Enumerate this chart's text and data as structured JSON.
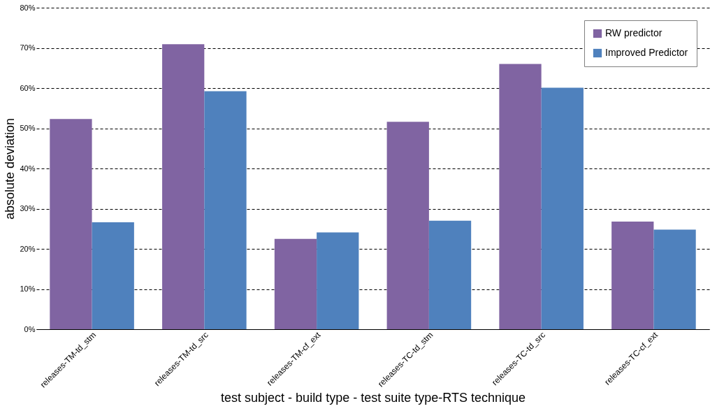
{
  "chart_data": {
    "type": "bar",
    "xlabel": "test subject - build type - test suite type-RTS technique",
    "ylabel": "absolute deviation",
    "categories": [
      "releases-TM-td_stm",
      "releases-TM-td_src",
      "releases-TM-cf_ext",
      "releases-TC-td_stm",
      "releases-TC-td_src",
      "releases-TC-cf_ext"
    ],
    "series": [
      {
        "name": "RW predictor",
        "color": "#8064a2",
        "values": [
          52.3,
          70.9,
          22.5,
          51.6,
          66.0,
          26.8
        ]
      },
      {
        "name": "Improved Predictor",
        "color": "#4f81bd",
        "values": [
          26.6,
          59.2,
          24.1,
          27.0,
          60.1,
          24.8
        ]
      }
    ],
    "ylim": [
      0,
      80
    ],
    "yticks": [
      {
        "value": 0,
        "label": "0%"
      },
      {
        "value": 10,
        "label": "10%"
      },
      {
        "value": 20,
        "label": "20%"
      },
      {
        "value": 30,
        "label": "30%"
      },
      {
        "value": 40,
        "label": "40%"
      },
      {
        "value": 50,
        "label": "50%"
      },
      {
        "value": 60,
        "label": "60%"
      },
      {
        "value": 70,
        "label": "70%"
      },
      {
        "value": 80,
        "label": "80%"
      }
    ],
    "grid": "y",
    "legend": "top right"
  }
}
